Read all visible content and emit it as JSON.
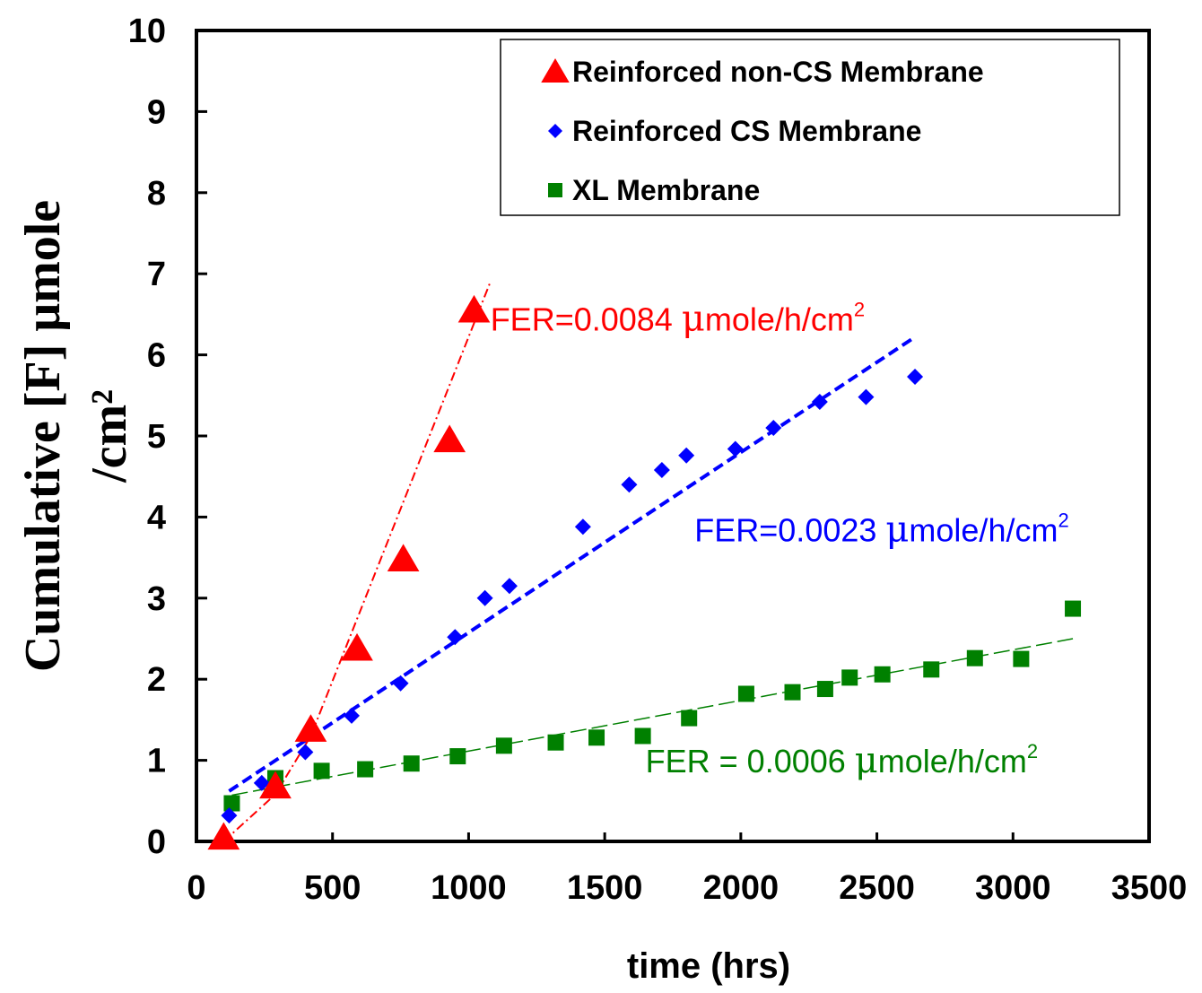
{
  "chart_data": {
    "type": "scatter",
    "xlabel": "time (hrs)",
    "ylabel_line1": "Cumulative [F]  μmole",
    "ylabel_line2": "/cm²",
    "xlim": [
      0,
      3500
    ],
    "ylim": [
      0,
      10
    ],
    "x_ticks": [
      0,
      500,
      1000,
      1500,
      2000,
      2500,
      3000,
      3500
    ],
    "y_ticks": [
      0,
      1,
      2,
      3,
      4,
      5,
      6,
      7,
      8,
      9,
      10
    ],
    "grid": false,
    "legend_position": "top-right",
    "series": [
      {
        "name": "Reinforced non-CS Membrane",
        "marker": "triangle",
        "color": "#ff0000",
        "x": [
          100,
          290,
          420,
          590,
          760,
          930,
          1020
        ],
        "y": [
          0.05,
          0.68,
          1.38,
          2.38,
          3.48,
          4.95,
          6.55
        ],
        "fit": {
          "x": [
            100,
            290,
            420,
            1080
          ],
          "y": [
            0.0,
            0.58,
            1.3,
            6.9
          ],
          "style": "dashdot"
        }
      },
      {
        "name": "Reinforced CS Membrane",
        "marker": "diamond",
        "color": "#0000ff",
        "x": [
          120,
          240,
          400,
          570,
          750,
          950,
          1060,
          1150,
          1420,
          1590,
          1710,
          1800,
          1980,
          2120,
          2290,
          2460,
          2640
        ],
        "y": [
          0.32,
          0.72,
          1.1,
          1.55,
          1.95,
          2.52,
          3.0,
          3.15,
          3.88,
          4.4,
          4.58,
          4.76,
          4.84,
          5.1,
          5.42,
          5.48,
          5.73
        ],
        "fit": {
          "x": [
            120,
            2640
          ],
          "y": [
            0.62,
            6.22
          ],
          "style": "dashed"
        }
      },
      {
        "name": "XL Membrane",
        "marker": "square",
        "color": "#008000",
        "x": [
          130,
          290,
          460,
          620,
          790,
          960,
          1130,
          1320,
          1470,
          1640,
          1810,
          2020,
          2190,
          2310,
          2400,
          2520,
          2700,
          2860,
          3030,
          3220
        ],
        "y": [
          0.47,
          0.78,
          0.87,
          0.89,
          0.96,
          1.05,
          1.18,
          1.22,
          1.28,
          1.3,
          1.52,
          1.82,
          1.84,
          1.88,
          2.02,
          2.06,
          2.12,
          2.26,
          2.25,
          2.87
        ],
        "fit": {
          "x": [
            130,
            3220
          ],
          "y": [
            0.57,
            2.5
          ],
          "style": "longdash"
        }
      }
    ],
    "annotations": [
      {
        "text": "FER=0.0084 ",
        "mu": "μ",
        "rest": "mole/h/cm",
        "sup": "2",
        "color": "#ff0000",
        "anchor": [
          1080,
          6.3
        ]
      },
      {
        "text": "FER=0.0023 ",
        "mu": "μ",
        "rest": "mole/h/cm",
        "sup": "2",
        "color": "#0000ff",
        "anchor": [
          1830,
          3.7
        ]
      },
      {
        "text": "FER = 0.0006  ",
        "mu": "μ",
        "rest": "mole/h/cm",
        "sup": "2",
        "color": "#008000",
        "anchor": [
          1650,
          0.85
        ]
      }
    ]
  }
}
